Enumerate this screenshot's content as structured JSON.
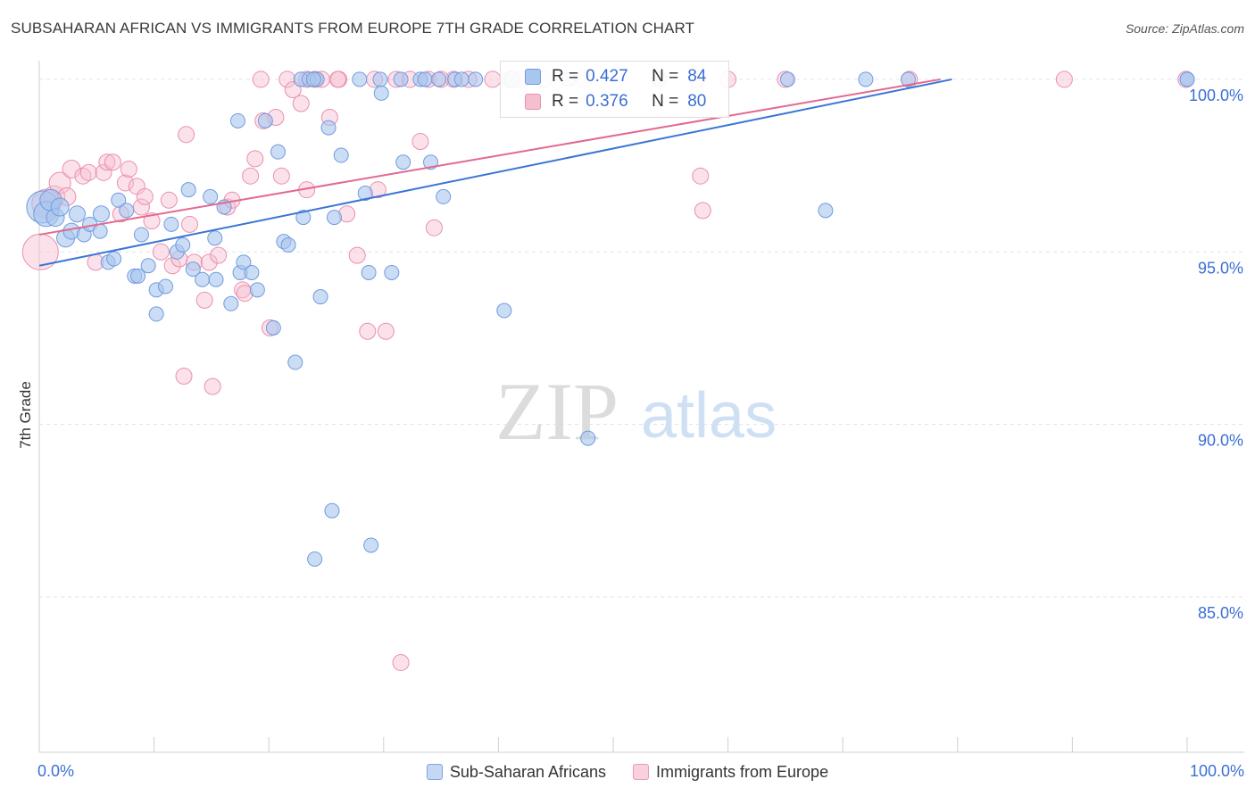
{
  "title": "SUBSAHARAN AFRICAN VS IMMIGRANTS FROM EUROPE 7TH GRADE CORRELATION CHART",
  "source": "Source: ZipAtlas.com",
  "watermark": {
    "zip": "ZIP",
    "atlas": "atlas"
  },
  "colors": {
    "blue_fill": "#a9c6ef",
    "blue_stroke": "#6f9be0",
    "blue_line": "#3a75d4",
    "pink_fill": "#f6bfd0",
    "pink_stroke": "#ea8fae",
    "pink_line": "#e2698f",
    "tick_text": "#3b6fd4",
    "grid": "#e3e3e3"
  },
  "stats": [
    {
      "r_label": "R =",
      "r_value": "0.427",
      "n_label": "N =",
      "n_value": "84",
      "series": "blue"
    },
    {
      "r_label": "R =",
      "r_value": "0.376",
      "n_label": "N =",
      "n_value": "80",
      "series": "pink"
    }
  ],
  "legend": [
    {
      "label": "Sub-Saharan Africans",
      "series": "blue"
    },
    {
      "label": "Immigrants from Europe",
      "series": "pink"
    }
  ],
  "chart_data": {
    "type": "scatter",
    "title": "SUBSAHARAN AFRICAN VS IMMIGRANTS FROM EUROPE 7TH GRADE CORRELATION CHART",
    "xlabel": "",
    "ylabel": "7th Grade",
    "xlim": [
      0,
      100
    ],
    "ylim": [
      80.5,
      100.8
    ],
    "x_tick_labels": [
      {
        "value": 0,
        "label": "0.0%"
      },
      {
        "value": 100,
        "label": "100.0%"
      }
    ],
    "y_ticks": [
      {
        "value": 100,
        "label": "100.0%"
      },
      {
        "value": 95,
        "label": "95.0%"
      },
      {
        "value": 90,
        "label": "90.0%"
      },
      {
        "value": 85,
        "label": "85.0%"
      }
    ],
    "x_minor_ticks": [
      0,
      10,
      20,
      30,
      40,
      50,
      60,
      70,
      80,
      90,
      100
    ],
    "grid": true,
    "legend_position": "bottom",
    "series": [
      {
        "name": "Sub-Saharan Africans",
        "color": "#a9c6ef",
        "trend": {
          "x0": 0,
          "y0": 94.6,
          "x1": 79.5,
          "y1": 100.0
        },
        "points": [
          [
            0.3,
            96.3,
            18
          ],
          [
            0.6,
            96.1,
            14
          ],
          [
            1.0,
            96.5,
            12
          ],
          [
            1.4,
            96.0,
            10
          ],
          [
            1.8,
            96.3,
            10
          ],
          [
            2.3,
            95.4,
            10
          ],
          [
            2.8,
            95.6,
            9
          ],
          [
            3.3,
            96.1,
            9
          ],
          [
            3.9,
            95.5,
            8
          ],
          [
            4.4,
            95.8,
            8
          ],
          [
            5.3,
            95.6,
            8
          ],
          [
            5.4,
            96.1,
            9
          ],
          [
            6.0,
            94.7,
            8
          ],
          [
            6.5,
            94.8,
            8
          ],
          [
            6.9,
            96.5,
            8
          ],
          [
            7.6,
            96.2,
            8
          ],
          [
            8.3,
            94.3,
            8
          ],
          [
            8.6,
            94.3,
            8
          ],
          [
            8.9,
            95.5,
            8
          ],
          [
            9.5,
            94.6,
            8
          ],
          [
            10.2,
            93.9,
            8
          ],
          [
            10.2,
            93.2,
            8
          ],
          [
            11.0,
            94.0,
            8
          ],
          [
            11.5,
            95.8,
            8
          ],
          [
            12.0,
            95.0,
            8
          ],
          [
            12.5,
            95.2,
            8
          ],
          [
            13.0,
            96.8,
            8
          ],
          [
            13.4,
            94.5,
            8
          ],
          [
            14.2,
            94.2,
            8
          ],
          [
            14.9,
            96.6,
            8
          ],
          [
            15.3,
            95.4,
            8
          ],
          [
            15.4,
            94.2,
            8
          ],
          [
            16.1,
            96.3,
            8
          ],
          [
            16.7,
            93.5,
            8
          ],
          [
            17.3,
            98.8,
            8
          ],
          [
            17.5,
            94.4,
            8
          ],
          [
            17.8,
            94.7,
            8
          ],
          [
            18.5,
            94.4,
            8
          ],
          [
            19.0,
            93.9,
            8
          ],
          [
            19.7,
            98.8,
            8
          ],
          [
            20.4,
            92.8,
            8
          ],
          [
            20.8,
            97.9,
            8
          ],
          [
            21.3,
            95.3,
            8
          ],
          [
            21.7,
            95.2,
            8
          ],
          [
            22.3,
            91.8,
            8
          ],
          [
            22.8,
            100.0,
            8
          ],
          [
            23.0,
            96.0,
            8
          ],
          [
            23.5,
            100.0,
            8
          ],
          [
            24.2,
            100.0,
            8
          ],
          [
            24.0,
            86.1,
            8
          ],
          [
            24.5,
            93.7,
            8
          ],
          [
            25.2,
            98.6,
            8
          ],
          [
            25.7,
            96.0,
            8
          ],
          [
            25.5,
            87.5,
            8
          ],
          [
            26.3,
            97.8,
            8
          ],
          [
            27.9,
            100.0,
            8
          ],
          [
            28.4,
            96.7,
            8
          ],
          [
            28.7,
            94.4,
            8
          ],
          [
            28.9,
            86.5,
            8
          ],
          [
            29.8,
            99.6,
            8
          ],
          [
            30.7,
            94.4,
            8
          ],
          [
            31.5,
            100.0,
            8
          ],
          [
            31.7,
            97.6,
            8
          ],
          [
            33.2,
            100.0,
            8
          ],
          [
            33.6,
            100.0,
            8
          ],
          [
            34.1,
            97.6,
            8
          ],
          [
            34.8,
            100.0,
            8
          ],
          [
            35.2,
            96.6,
            8
          ],
          [
            36.2,
            100.0,
            8
          ],
          [
            36.8,
            100.0,
            8
          ],
          [
            38.0,
            100.0,
            8
          ],
          [
            40.5,
            93.3,
            8
          ],
          [
            41.2,
            100.0,
            9
          ],
          [
            47.8,
            89.6,
            8
          ],
          [
            54.0,
            100.0,
            8
          ],
          [
            65.2,
            100.0,
            8
          ],
          [
            68.5,
            96.2,
            8
          ],
          [
            72.0,
            100.0,
            8
          ],
          [
            75.7,
            100.0,
            8
          ],
          [
            100.0,
            100.0,
            8
          ],
          [
            100.0,
            100.0,
            8
          ],
          [
            23.9,
            100.0,
            8
          ],
          [
            29.7,
            100.0,
            8
          ],
          [
            46.1,
            100.0,
            8
          ]
        ]
      },
      {
        "name": "Immigrants from Europe",
        "color": "#f6bfd0",
        "trend": {
          "x0": 0,
          "y0": 95.5,
          "x1": 78.5,
          "y1": 100.0
        },
        "points": [
          [
            0.1,
            95.0,
            20
          ],
          [
            0.6,
            96.4,
            16
          ],
          [
            1.3,
            96.6,
            12
          ],
          [
            1.8,
            97.0,
            12
          ],
          [
            2.4,
            96.6,
            10
          ],
          [
            2.8,
            97.4,
            10
          ],
          [
            3.8,
            97.2,
            9
          ],
          [
            4.3,
            97.3,
            9
          ],
          [
            4.9,
            94.7,
            9
          ],
          [
            5.6,
            97.3,
            9
          ],
          [
            5.9,
            97.6,
            9
          ],
          [
            6.4,
            97.6,
            9
          ],
          [
            7.1,
            96.1,
            9
          ],
          [
            7.5,
            97.0,
            9
          ],
          [
            7.8,
            97.4,
            9
          ],
          [
            8.5,
            96.9,
            9
          ],
          [
            8.9,
            96.3,
            9
          ],
          [
            9.2,
            96.6,
            9
          ],
          [
            9.8,
            95.9,
            9
          ],
          [
            10.6,
            95.0,
            9
          ],
          [
            11.3,
            96.5,
            9
          ],
          [
            11.6,
            94.6,
            9
          ],
          [
            12.2,
            94.8,
            9
          ],
          [
            12.6,
            91.4,
            9
          ],
          [
            13.1,
            95.8,
            9
          ],
          [
            13.5,
            94.7,
            9
          ],
          [
            14.4,
            93.6,
            9
          ],
          [
            14.8,
            94.7,
            9
          ],
          [
            15.1,
            91.1,
            9
          ],
          [
            15.6,
            94.9,
            9
          ],
          [
            16.4,
            96.3,
            9
          ],
          [
            16.8,
            96.5,
            9
          ],
          [
            17.7,
            93.9,
            9
          ],
          [
            17.9,
            93.8,
            9
          ],
          [
            18.4,
            97.2,
            9
          ],
          [
            18.8,
            97.7,
            9
          ],
          [
            19.5,
            98.8,
            9
          ],
          [
            20.1,
            92.8,
            9
          ],
          [
            20.6,
            98.9,
            9
          ],
          [
            21.1,
            97.2,
            9
          ],
          [
            21.6,
            100.0,
            9
          ],
          [
            22.1,
            99.7,
            9
          ],
          [
            22.8,
            99.3,
            9
          ],
          [
            23.3,
            96.8,
            9
          ],
          [
            24.0,
            100.0,
            9
          ],
          [
            24.6,
            100.0,
            9
          ],
          [
            25.3,
            98.9,
            9
          ],
          [
            26.1,
            100.0,
            9
          ],
          [
            26.8,
            96.1,
            9
          ],
          [
            27.7,
            94.9,
            9
          ],
          [
            28.6,
            92.7,
            9
          ],
          [
            29.5,
            96.8,
            9
          ],
          [
            30.2,
            92.7,
            9
          ],
          [
            31.1,
            100.0,
            9
          ],
          [
            31.5,
            83.1,
            9
          ],
          [
            32.3,
            100.0,
            9
          ],
          [
            33.2,
            98.2,
            9
          ],
          [
            34.4,
            95.7,
            9
          ],
          [
            36.1,
            100.0,
            9
          ],
          [
            39.5,
            100.0,
            9
          ],
          [
            42.0,
            100.0,
            9
          ],
          [
            44.0,
            100.0,
            9
          ],
          [
            47.5,
            100.0,
            9
          ],
          [
            57.3,
            100.0,
            9
          ],
          [
            57.6,
            97.2,
            9
          ],
          [
            57.8,
            96.2,
            9
          ],
          [
            60.0,
            100.0,
            9
          ],
          [
            65.0,
            100.0,
            9
          ],
          [
            75.8,
            100.0,
            9
          ],
          [
            89.3,
            100.0,
            9
          ],
          [
            99.9,
            100.0,
            9
          ],
          [
            12.8,
            98.4,
            9
          ],
          [
            19.3,
            100.0,
            9
          ],
          [
            23.3,
            100.0,
            9
          ],
          [
            26.0,
            100.0,
            9
          ],
          [
            29.2,
            100.0,
            9
          ],
          [
            33.9,
            100.0,
            9
          ],
          [
            35.0,
            100.0,
            9
          ],
          [
            37.4,
            100.0,
            9
          ],
          [
            41.0,
            100.0,
            9
          ]
        ]
      }
    ]
  }
}
